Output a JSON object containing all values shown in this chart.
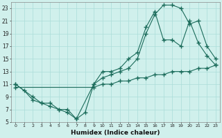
{
  "xlabel": "Humidex (Indice chaleur)",
  "xlim": [
    -0.5,
    23.5
  ],
  "ylim": [
    5,
    24
  ],
  "xticks": [
    0,
    1,
    2,
    3,
    4,
    5,
    6,
    7,
    8,
    9,
    10,
    11,
    12,
    13,
    14,
    15,
    16,
    17,
    18,
    19,
    20,
    21,
    22,
    23
  ],
  "yticks": [
    5,
    7,
    9,
    11,
    13,
    15,
    17,
    19,
    21,
    23
  ],
  "bg_color": "#d0f0ec",
  "line_color": "#1a6b5a",
  "grid_color": "#aaddd8",
  "curve1_x": [
    0,
    1,
    2,
    3,
    4,
    5,
    6,
    7,
    8,
    9,
    10,
    11,
    12,
    13,
    14,
    15,
    16,
    17,
    18,
    19,
    20,
    21,
    22,
    23
  ],
  "curve1_y": [
    11,
    10,
    8.5,
    8,
    7.5,
    7,
    6.5,
    5.5,
    6.5,
    11,
    13,
    13,
    13.5,
    15,
    16,
    20,
    22.5,
    18,
    18,
    17,
    21,
    17.5,
    15.5,
    14
  ],
  "curve2_x": [
    0,
    2,
    3,
    4,
    5,
    6,
    7,
    9,
    10,
    11,
    12,
    13,
    14,
    15,
    16,
    17,
    18,
    19,
    20,
    21,
    22,
    23
  ],
  "curve2_y": [
    11,
    9,
    8,
    8,
    7,
    7,
    5.5,
    11,
    12,
    12.5,
    13,
    13.5,
    15,
    19,
    22,
    23.5,
    23.5,
    23,
    20.5,
    21,
    17,
    15
  ],
  "curve3_x": [
    0,
    9,
    10,
    11,
    12,
    13,
    14,
    15,
    16,
    17,
    18,
    19,
    20,
    21,
    22,
    23
  ],
  "curve3_y": [
    10.5,
    10.5,
    11,
    11,
    11.5,
    11.5,
    12,
    12,
    12.5,
    12.5,
    13,
    13,
    13,
    13.5,
    13.5,
    14
  ]
}
